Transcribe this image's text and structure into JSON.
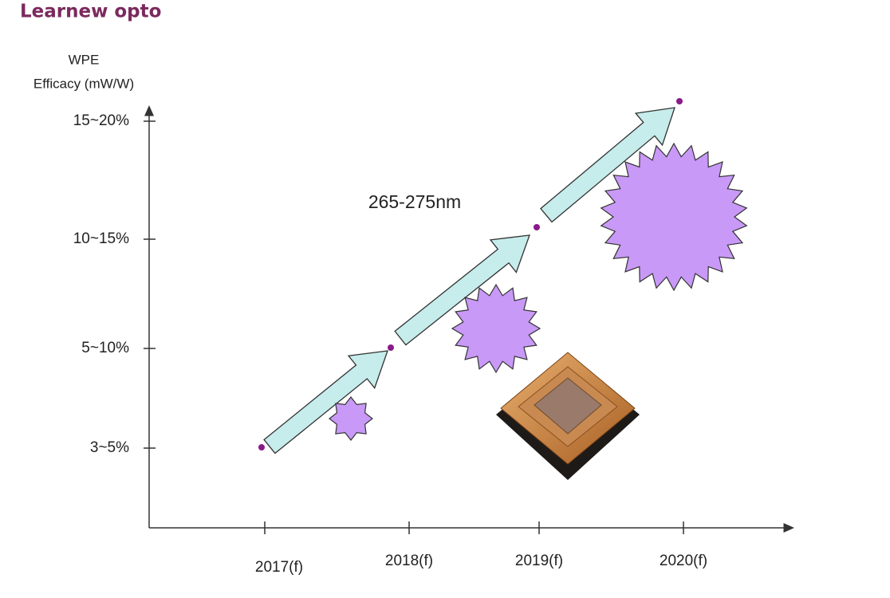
{
  "header": {
    "brand": "Learnew opto"
  },
  "y_axis": {
    "title_lines": [
      "WPE",
      "Efficacy (mW/W)"
    ],
    "ticks": [
      "15~20%",
      "10~15%",
      "5~10%",
      "3~5%"
    ]
  },
  "x_axis": {
    "ticks": [
      "2017(f)",
      "2018(f)",
      "2019(f)",
      "2020(f)"
    ]
  },
  "annotation": "265-275nm"
}
